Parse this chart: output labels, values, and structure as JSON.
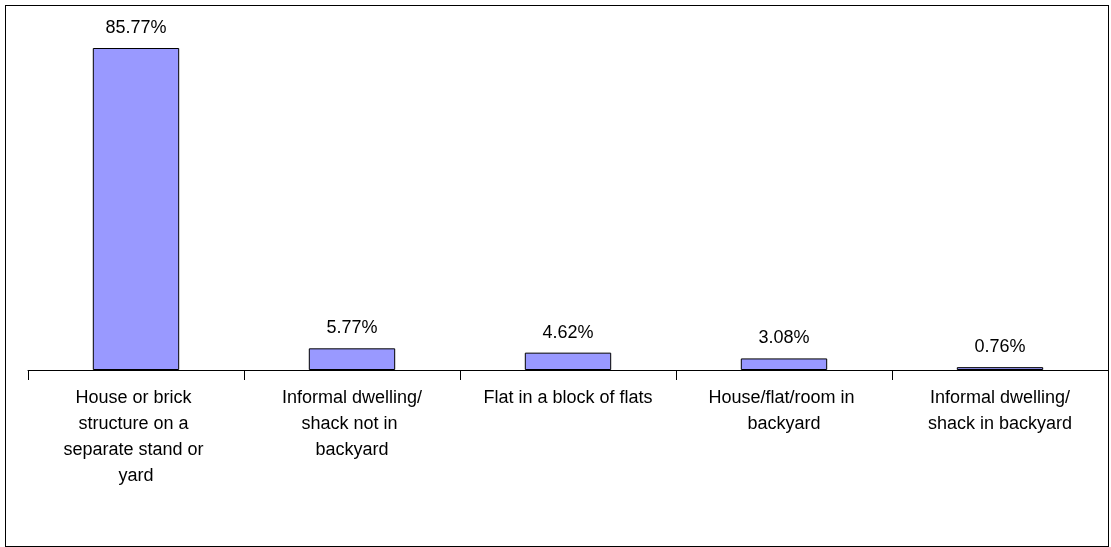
{
  "chart_data": {
    "type": "bar",
    "categories": [
      "House or brick structure on a separate stand or yard",
      "Informal dwelling/shack not in backyard",
      "Flat in a block of flats",
      "House/flat/room in backyard",
      "Informal dwelling/shack in backyard"
    ],
    "values": [
      85.77,
      5.77,
      4.62,
      3.08,
      0.76
    ],
    "value_labels": [
      "85.77%",
      "5.77%",
      "4.62%",
      "3.08%",
      "0.76%"
    ],
    "color": "#9999ff"
  }
}
